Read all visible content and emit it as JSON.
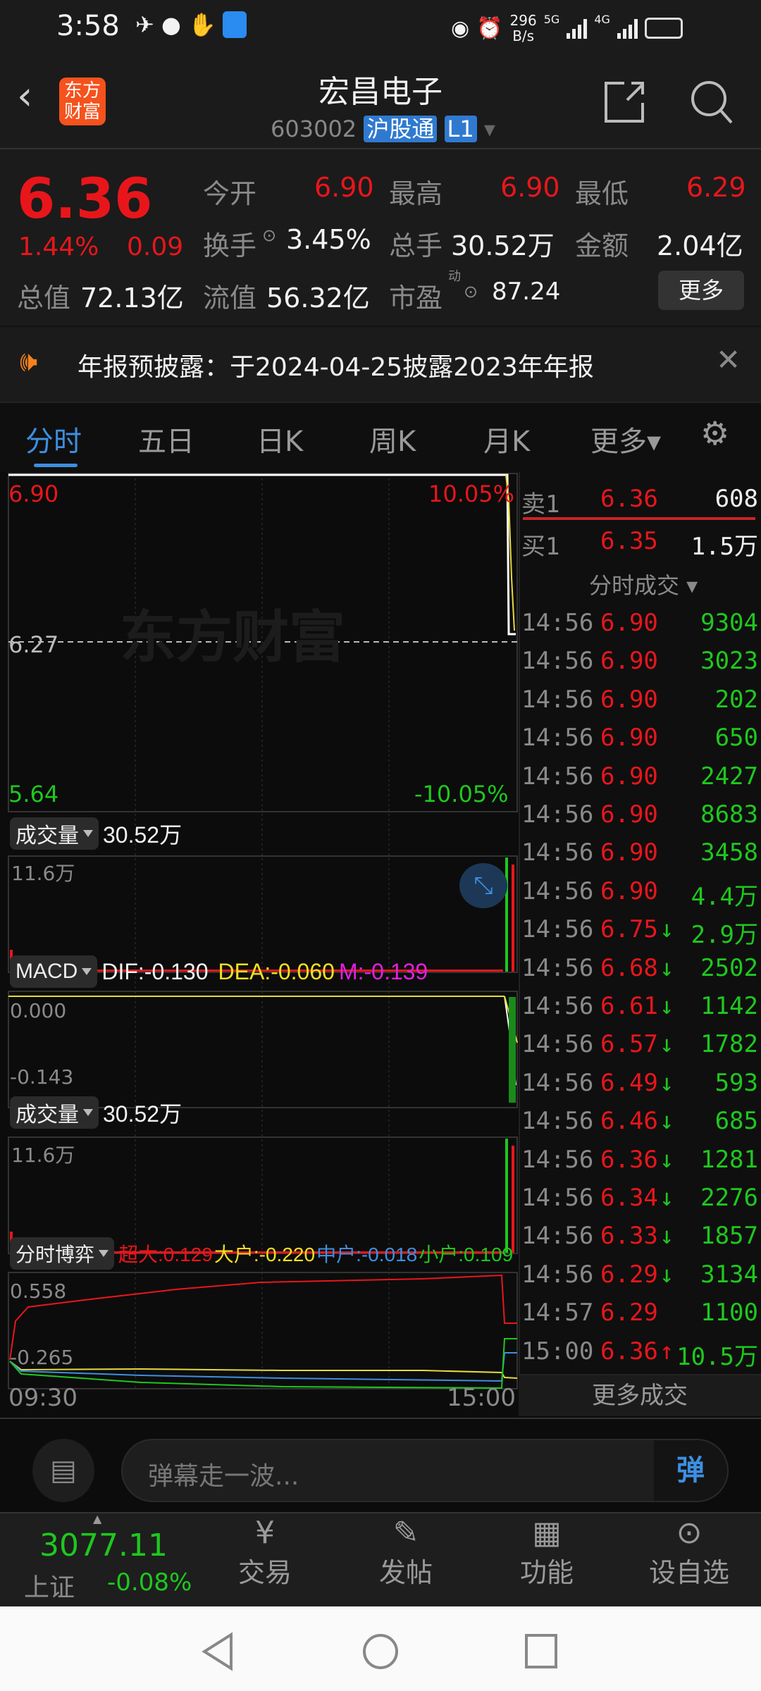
{
  "status_bar": {
    "time": "3:58",
    "net_speed": "296",
    "net_unit": "B/s",
    "sig1": "5G",
    "sig2": "4G"
  },
  "header": {
    "logo": "东方财富",
    "title": "宏昌电子",
    "code": "603002",
    "badge": "沪股通",
    "level": "L1"
  },
  "quote": {
    "price": "6.36",
    "pct": "1.44%",
    "change": "0.09",
    "open_label": "今开",
    "open": "6.90",
    "high_label": "最高",
    "high": "6.90",
    "low_label": "最低",
    "low": "6.29",
    "turnover_label": "换手",
    "turnover": "3.45%",
    "volume_label": "总手",
    "volume": "30.52万",
    "amount_label": "金额",
    "amount": "2.04亿",
    "mcap_label": "总值",
    "mcap": "72.13亿",
    "float_label": "流值",
    "float": "56.32亿",
    "pe_label": "市盈",
    "pe_sup": "动",
    "pe": "87.24",
    "more": "更多"
  },
  "notice": {
    "text": "年报预披露：于2024-04-25披露2023年年报"
  },
  "tabs": [
    {
      "label": "分时",
      "active": true
    },
    {
      "label": "五日"
    },
    {
      "label": "日K"
    },
    {
      "label": "周K"
    },
    {
      "label": "月K"
    },
    {
      "label": "更多▾"
    }
  ],
  "chart": {
    "watermark": "东方财富",
    "y_top": "6.90",
    "y_mid": "6.27",
    "y_bot": "5.64",
    "pct_top": "10.05%",
    "pct_bot": "-10.05%",
    "vol_label": "成交量",
    "vol_value": "30.52万",
    "vol_max": "11.6万",
    "macd_label": "MACD",
    "dif": "DIF:-0.130",
    "dea": "DEA:-0.060",
    "m": "M:-0.139",
    "macd_top": "0.000",
    "macd_bot": "-0.143",
    "game_label": "分时博弈",
    "chaoda": "超大:0.129",
    "dahu": "大户:-0.220",
    "zhonghu": "中户:-0.018",
    "xiaohu": "小户:0.109",
    "game_top": "0.558",
    "game_bot": "-0.265",
    "t_start": "09:30",
    "t_end": "15:00"
  },
  "orderbook": {
    "sell_label": "卖1",
    "sell_price": "6.36",
    "sell_vol": "608",
    "buy_label": "买1",
    "buy_price": "6.35",
    "buy_vol": "1.5万",
    "ticks_title": "分时成交 ▾",
    "more": "更多成交"
  },
  "ticks": [
    {
      "t": "14:56",
      "p": "6.90",
      "a": "",
      "v": "9304"
    },
    {
      "t": "14:56",
      "p": "6.90",
      "a": "",
      "v": "3023"
    },
    {
      "t": "14:56",
      "p": "6.90",
      "a": "",
      "v": "202"
    },
    {
      "t": "14:56",
      "p": "6.90",
      "a": "",
      "v": "650"
    },
    {
      "t": "14:56",
      "p": "6.90",
      "a": "",
      "v": "2427"
    },
    {
      "t": "14:56",
      "p": "6.90",
      "a": "",
      "v": "8683"
    },
    {
      "t": "14:56",
      "p": "6.90",
      "a": "",
      "v": "3458"
    },
    {
      "t": "14:56",
      "p": "6.90",
      "a": "",
      "v": "4.4万"
    },
    {
      "t": "14:56",
      "p": "6.75",
      "a": "↓",
      "v": "2.9万"
    },
    {
      "t": "14:56",
      "p": "6.68",
      "a": "↓",
      "v": "2502"
    },
    {
      "t": "14:56",
      "p": "6.61",
      "a": "↓",
      "v": "1142"
    },
    {
      "t": "14:56",
      "p": "6.57",
      "a": "↓",
      "v": "1782"
    },
    {
      "t": "14:56",
      "p": "6.49",
      "a": "↓",
      "v": "593"
    },
    {
      "t": "14:56",
      "p": "6.46",
      "a": "↓",
      "v": "685"
    },
    {
      "t": "14:56",
      "p": "6.36",
      "a": "↓",
      "v": "1281"
    },
    {
      "t": "14:56",
      "p": "6.34",
      "a": "↓",
      "v": "2276"
    },
    {
      "t": "14:56",
      "p": "6.33",
      "a": "↓",
      "v": "1857"
    },
    {
      "t": "14:56",
      "p": "6.29",
      "a": "↓",
      "v": "3134"
    },
    {
      "t": "14:57",
      "p": "6.29",
      "a": "",
      "v": "1100"
    },
    {
      "t": "15:00",
      "p": "6.36",
      "a": "↑",
      "v": "10.5万"
    }
  ],
  "barrage": {
    "placeholder": "弹幕走一波...",
    "send": "弹"
  },
  "bottom_nav": {
    "index_value": "3077.11",
    "index_name": "上证",
    "index_pct": "-0.08%",
    "items": [
      "交易",
      "发帖",
      "功能",
      "设自选"
    ]
  },
  "colors": {
    "up": "#e8161b",
    "down": "#1ec81e",
    "accent": "#3d8fe0",
    "brand": "#f5521d"
  }
}
